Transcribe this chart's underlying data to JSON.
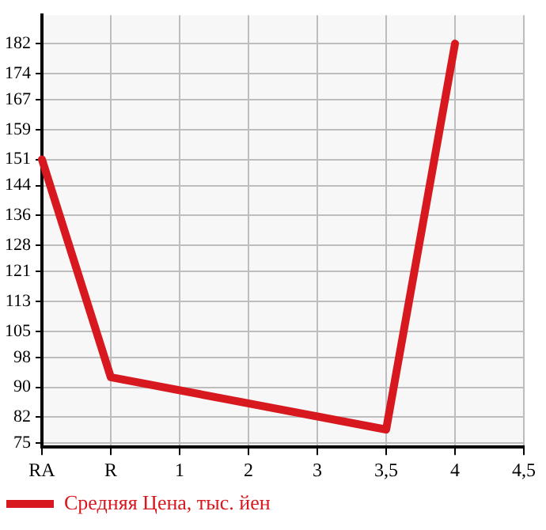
{
  "chart_data": {
    "type": "line",
    "categories": [
      "RA",
      "R",
      "1",
      "2",
      "3",
      "3,5",
      "4",
      "4,5"
    ],
    "series": [
      {
        "name": "Средняя Цена, тыс. йен",
        "color": "#d7191f",
        "values": [
          151,
          92.7,
          null,
          null,
          null,
          78.7,
          182,
          null
        ]
      }
    ],
    "ylim": [
      74,
      189.6
    ],
    "yticks": [
      75,
      82,
      90,
      98,
      105,
      113,
      121,
      128,
      136,
      144,
      151,
      159,
      167,
      174,
      182
    ],
    "grid": true,
    "legend": "bottom left",
    "marker": "none",
    "line_style": "solid"
  }
}
